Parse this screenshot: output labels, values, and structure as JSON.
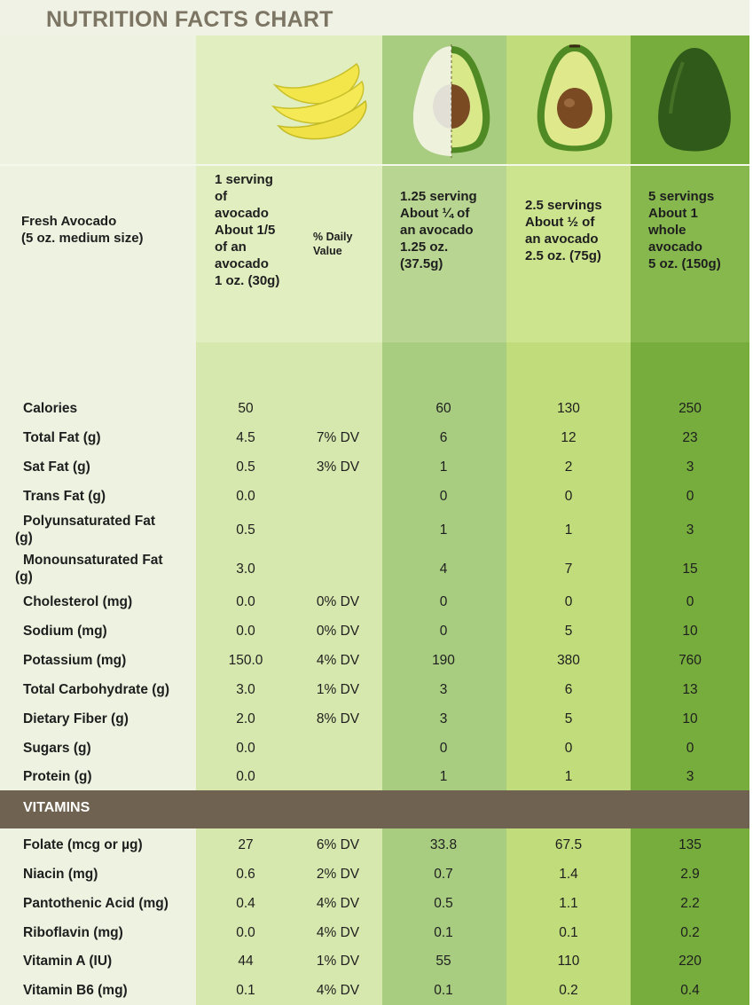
{
  "title": "NUTRITION FACTS CHART",
  "colors": {
    "page_bg": "#ffffff",
    "label_col_bg": "#eef3e1",
    "col1_bg": "#d6e8ad",
    "col2_bg": "#a8cd80",
    "col3_bg": "#c0dc7a",
    "col4_bg": "#7db340",
    "vitamins_bar": "#6f6250",
    "title_color": "#7d7563"
  },
  "icons": [
    "avocado-slices-icon",
    "avocado-quarter-cut-icon",
    "avocado-half-icon",
    "avocado-whole-icon"
  ],
  "chart_data": {
    "type": "table",
    "title": "NUTRITION FACTS CHART",
    "row_header": "Fresh Avocado\n(5 oz. medium size)",
    "columns": [
      "1 serving\nof\navocado\nAbout 1/5\nof an\navocado\n1 oz. (30g)",
      "% Daily\nValue",
      "1.25 serving\nAbout ¼ of\nan avocado\n1.25 oz.\n(37.5g)",
      "2.5 servings\nAbout ½ of\nan avocado\n2.5 oz. (75g)",
      "5 servings\nAbout 1\nwhole\navocado\n5 oz. (150g)"
    ],
    "rows": [
      {
        "label": "Calories",
        "values": [
          "50",
          "",
          "60",
          "130",
          "250"
        ]
      },
      {
        "label": "Total Fat (g)",
        "values": [
          "4.5",
          "7% DV",
          "6",
          "12",
          "23"
        ]
      },
      {
        "label": "Sat Fat (g)",
        "values": [
          "0.5",
          "3% DV",
          "1",
          "2",
          "3"
        ]
      },
      {
        "label": "Trans Fat (g)",
        "values": [
          "0.0",
          "",
          "0",
          "0",
          "0"
        ]
      },
      {
        "label": "Polyunsaturated Fat\n(g)",
        "values": [
          "0.5",
          "",
          "1",
          "1",
          "3"
        ]
      },
      {
        "label": "Monounsaturated Fat\n(g)",
        "values": [
          "3.0",
          "",
          "4",
          "7",
          "15"
        ]
      },
      {
        "label": "Cholesterol (mg)",
        "values": [
          "0.0",
          "0% DV",
          "0",
          "0",
          "0"
        ]
      },
      {
        "label": "Sodium (mg)",
        "values": [
          "0.0",
          "0% DV",
          "0",
          "5",
          "10"
        ]
      },
      {
        "label": "Potassium (mg)",
        "values": [
          "150.0",
          "4% DV",
          "190",
          "380",
          "760"
        ]
      },
      {
        "label": "Total Carbohydrate (g)",
        "values": [
          "3.0",
          "1% DV",
          "3",
          "6",
          "13"
        ]
      },
      {
        "label": "Dietary Fiber (g)",
        "values": [
          "2.0",
          "8% DV",
          "3",
          "5",
          "10"
        ]
      },
      {
        "label": "Sugars (g)",
        "values": [
          "0.0",
          "",
          "0",
          "0",
          "0"
        ]
      },
      {
        "label": "Protein (g)",
        "values": [
          "0.0",
          "",
          "1",
          "1",
          "3"
        ]
      }
    ],
    "section_label": "VITAMINS",
    "vitamin_rows": [
      {
        "label": "Folate (mcg or µg)",
        "values": [
          "27",
          "6% DV",
          "33.8",
          "67.5",
          "135"
        ]
      },
      {
        "label": "Niacin (mg)",
        "values": [
          "0.6",
          "2% DV",
          "0.7",
          "1.4",
          "2.9"
        ]
      },
      {
        "label": "Pantothenic Acid (mg)",
        "values": [
          "0.4",
          "4% DV",
          "0.5",
          "1.1",
          "2.2"
        ]
      },
      {
        "label": "Riboflavin (mg)",
        "values": [
          "0.0",
          "4% DV",
          "0.1",
          "0.1",
          "0.2"
        ]
      },
      {
        "label": "Vitamin A (IU)",
        "values": [
          "44",
          "1% DV",
          "55",
          "110",
          "220"
        ]
      },
      {
        "label": "Vitamin B6 (mg)",
        "values": [
          "0.1",
          "4% DV",
          "0.1",
          "0.2",
          "0.4"
        ]
      }
    ]
  }
}
